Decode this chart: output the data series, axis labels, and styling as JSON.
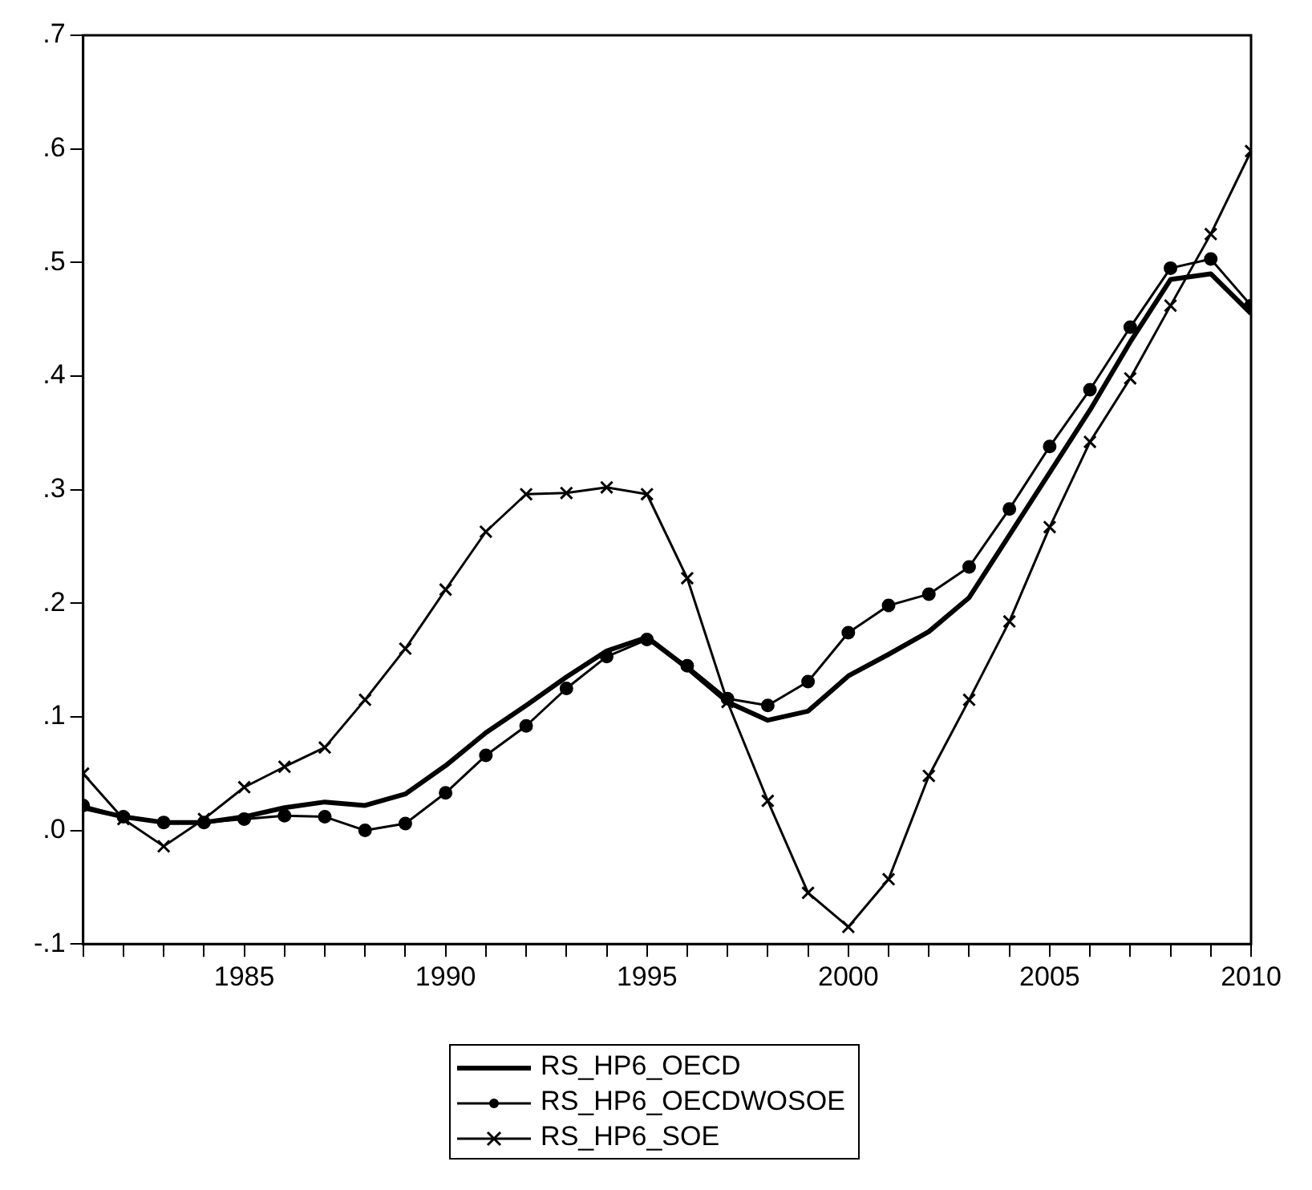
{
  "chart_data": {
    "type": "line",
    "x": [
      1981,
      1982,
      1983,
      1984,
      1985,
      1986,
      1987,
      1988,
      1989,
      1990,
      1991,
      1992,
      1993,
      1994,
      1995,
      1996,
      1997,
      1998,
      1999,
      2000,
      2001,
      2002,
      2003,
      2004,
      2005,
      2006,
      2007,
      2008,
      2009,
      2010
    ],
    "series": [
      {
        "name": "RS_HP6_OECD",
        "color": "#000000",
        "marker": "none",
        "values": [
          0.02,
          0.012,
          0.007,
          0.007,
          0.012,
          0.02,
          0.025,
          0.022,
          0.032,
          0.057,
          0.086,
          0.11,
          0.135,
          0.158,
          0.17,
          0.143,
          0.113,
          0.097,
          0.105,
          0.136,
          0.155,
          0.175,
          0.205,
          0.26,
          0.315,
          0.37,
          0.43,
          0.485,
          0.49,
          0.455
        ]
      },
      {
        "name": "RS_HP6_OECDWOSOE",
        "color": "#000000",
        "marker": "circle",
        "values": [
          0.022,
          0.012,
          0.007,
          0.007,
          0.01,
          0.013,
          0.012,
          0.0,
          0.006,
          0.033,
          0.066,
          0.092,
          0.125,
          0.153,
          0.168,
          0.145,
          0.116,
          0.11,
          0.131,
          0.174,
          0.198,
          0.208,
          0.232,
          0.283,
          0.338,
          0.388,
          0.443,
          0.495,
          0.503,
          0.462
        ]
      },
      {
        "name": "RS_HP6_SOE",
        "color": "#000000",
        "marker": "cross",
        "values": [
          0.05,
          0.01,
          -0.014,
          0.01,
          0.038,
          0.056,
          0.073,
          0.115,
          0.16,
          0.212,
          0.263,
          0.296,
          0.297,
          0.302,
          0.296,
          0.222,
          0.113,
          0.026,
          -0.055,
          -0.085,
          -0.043,
          0.048,
          0.115,
          0.184,
          0.267,
          0.342,
          0.398,
          0.462,
          0.525,
          0.598
        ]
      }
    ],
    "xlim": [
      1981,
      2010
    ],
    "xticks": [
      {
        "value": 1981,
        "label": null
      },
      {
        "value": 1982,
        "label": null
      },
      {
        "value": 1983,
        "label": null
      },
      {
        "value": 1984,
        "label": null
      },
      1985,
      {
        "value": 1986,
        "label": null
      },
      {
        "value": 1987,
        "label": null
      },
      {
        "value": 1988,
        "label": null
      },
      {
        "value": 1989,
        "label": null
      },
      1990,
      {
        "value": 1991,
        "label": null
      },
      {
        "value": 1992,
        "label": null
      },
      {
        "value": 1993,
        "label": null
      },
      {
        "value": 1994,
        "label": null
      },
      1995,
      {
        "value": 1996,
        "label": null
      },
      {
        "value": 1997,
        "label": null
      },
      {
        "value": 1998,
        "label": null
      },
      {
        "value": 1999,
        "label": null
      },
      2000,
      {
        "value": 2001,
        "label": null
      },
      {
        "value": 2002,
        "label": null
      },
      {
        "value": 2003,
        "label": null
      },
      {
        "value": 2004,
        "label": null
      },
      2005,
      {
        "value": 2006,
        "label": null
      },
      {
        "value": 2007,
        "label": null
      },
      {
        "value": 2008,
        "label": null
      },
      {
        "value": 2009,
        "label": null
      },
      2010
    ],
    "ylim": [
      -0.1,
      0.7
    ],
    "yticks": [
      {
        "value": -0.1,
        "label": "-.1"
      },
      {
        "value": 0,
        "label": ".0"
      },
      {
        "value": 0.1,
        "label": ".1"
      },
      {
        "value": 0.2,
        "label": ".2"
      },
      {
        "value": 0.3,
        "label": ".3"
      },
      {
        "value": 0.4,
        "label": ".4"
      },
      {
        "value": 0.5,
        "label": ".5"
      },
      {
        "value": 0.6,
        "label": ".6"
      },
      {
        "value": 0.7,
        "label": ".7"
      }
    ],
    "grid": false,
    "legend": "bottom"
  }
}
